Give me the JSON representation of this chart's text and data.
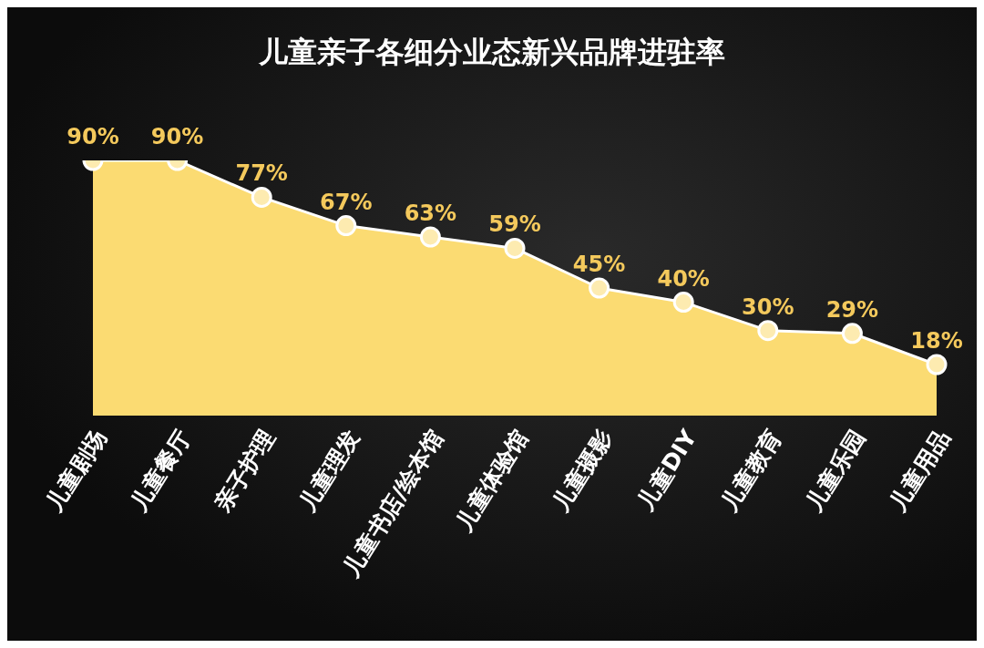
{
  "chart_data": {
    "type": "area",
    "title": "儿童亲子各细分业态新兴品牌进驻率",
    "categories": [
      "儿童剧场",
      "儿童餐厅",
      "亲子护理",
      "儿童理发",
      "儿童书店/绘本馆",
      "儿童体验馆",
      "儿童摄影",
      "儿童DIY",
      "儿童教育",
      "儿童乐园",
      "儿童用品"
    ],
    "values": [
      90,
      90,
      77,
      67,
      63,
      59,
      45,
      40,
      30,
      29,
      18
    ],
    "value_labels": [
      "90%",
      "90%",
      "77%",
      "67%",
      "63%",
      "59%",
      "45%",
      "40%",
      "30%",
      "29%",
      "18%"
    ],
    "color": "#fbdb72",
    "marker": "circle"
  }
}
